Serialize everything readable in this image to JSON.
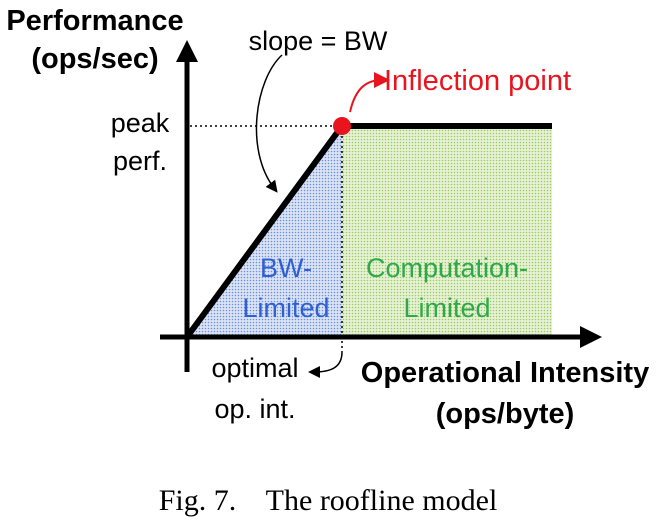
{
  "y_axis": {
    "line1": "Performance",
    "line2": "(ops/sec)"
  },
  "x_axis": {
    "line1": "Operational Intensity",
    "line2": "(ops/byte)"
  },
  "peak": {
    "line1": "peak",
    "line2": "perf."
  },
  "slope_label": "slope = BW",
  "inflection_label": "Inflection point",
  "bw_region": {
    "line1": "BW-",
    "line2": "Limited"
  },
  "compute_region": {
    "line1": "Computation-",
    "line2": "Limited"
  },
  "optimal": {
    "line1": "optimal",
    "line2": "op. int."
  },
  "caption": "Fig. 7.    The roofline model",
  "colors": {
    "inflection": "#e8141e",
    "bw_text": "#2f5fd0",
    "compute_text": "#2ea84a",
    "bw_fill": "#7a9ad8",
    "compute_fill": "#a8d070"
  }
}
